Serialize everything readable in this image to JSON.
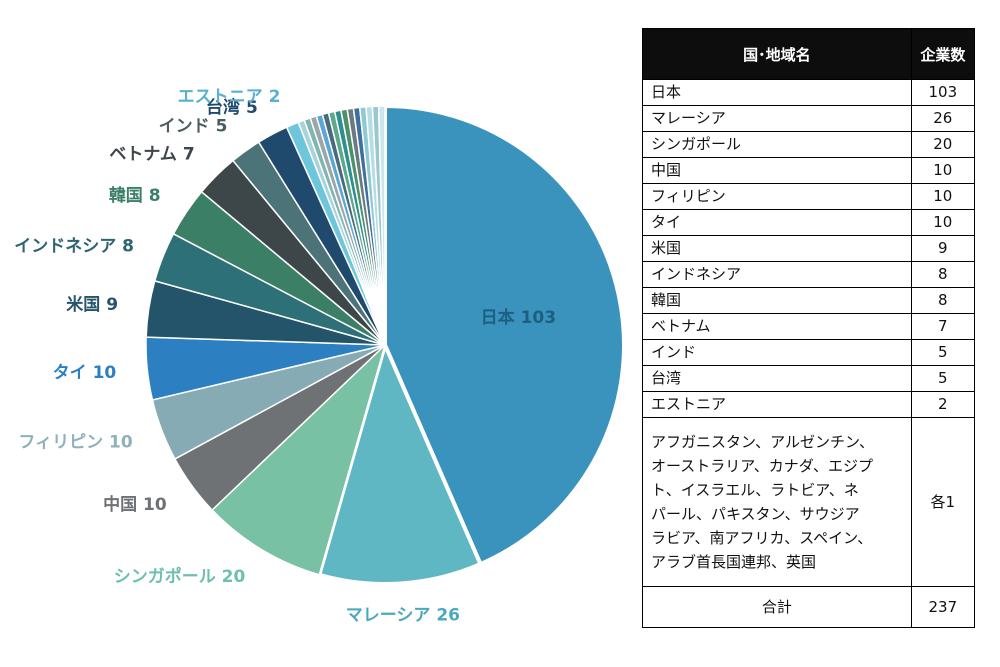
{
  "chart_data": {
    "type": "pie",
    "total": 237,
    "slices": [
      {
        "label": "日本",
        "value": 103,
        "display": "日本 103",
        "color": "#3a93bd",
        "label_color": "#1d5f82"
      },
      {
        "label": "マレーシア",
        "value": 26,
        "display": "マレーシア 26",
        "color": "#5fb7c4",
        "label_color": "#4aa8bf"
      },
      {
        "label": "シンガポール",
        "value": 20,
        "display": "シンガポール 20",
        "color": "#79c1a5",
        "label_color": "#6dbfae"
      },
      {
        "label": "中国",
        "value": 10,
        "display": "中国 10",
        "color": "#6e7274",
        "label_color": "#6e7274"
      },
      {
        "label": "フィリピン",
        "value": 10,
        "display": "フィリピン 10",
        "color": "#86abb4",
        "label_color": "#8fb1bb"
      },
      {
        "label": "タイ",
        "value": 10,
        "display": "タイ 10",
        "color": "#2c80c2",
        "label_color": "#2c80c2"
      },
      {
        "label": "米国",
        "value": 9,
        "display": "米国 9",
        "color": "#245469",
        "label_color": "#245469"
      },
      {
        "label": "インドネシア",
        "value": 8,
        "display": "インドネシア 8",
        "color": "#2d7078",
        "label_color": "#2d6470"
      },
      {
        "label": "韓国",
        "value": 8,
        "display": "韓国 8",
        "color": "#3c7f67",
        "label_color": "#3c7f67"
      },
      {
        "label": "ベトナム",
        "value": 7,
        "display": "ベトナム 7",
        "color": "#3d4648",
        "label_color": "#3d4648"
      },
      {
        "label": "インド",
        "value": 5,
        "display": "インド 5",
        "color": "#4c7378",
        "label_color": "#4c5d62"
      },
      {
        "label": "台湾",
        "value": 5,
        "display": "台湾 5",
        "color": "#1f4a6d",
        "label_color": "#1f4a6d"
      },
      {
        "label": "エストニア",
        "value": 2,
        "display": "エストニア 2",
        "color": "#6ec6dc",
        "label_color": "#5ab0cf"
      },
      {
        "label": "アフガニスタン",
        "value": 1,
        "display": "",
        "color": "#a8d3dc",
        "label_color": ""
      },
      {
        "label": "アルゼンチン",
        "value": 1,
        "display": "",
        "color": "#7fb6b0",
        "label_color": ""
      },
      {
        "label": "オーストラリア",
        "value": 1,
        "display": "",
        "color": "#9aa6aa",
        "label_color": ""
      },
      {
        "label": "カナダ",
        "value": 1,
        "display": "",
        "color": "#5aa7d6",
        "label_color": ""
      },
      {
        "label": "エジプト",
        "value": 1,
        "display": "",
        "color": "#4a6b7c",
        "label_color": ""
      },
      {
        "label": "イスラエル",
        "value": 1,
        "display": "",
        "color": "#5ca88a",
        "label_color": ""
      },
      {
        "label": "ラトビア",
        "value": 1,
        "display": "",
        "color": "#2e8f8f",
        "label_color": ""
      },
      {
        "label": "ネパール",
        "value": 1,
        "display": "",
        "color": "#4d8f6a",
        "label_color": ""
      },
      {
        "label": "パキスタン",
        "value": 1,
        "display": "",
        "color": "#6a7a80",
        "label_color": ""
      },
      {
        "label": "サウジアラビア",
        "value": 1,
        "display": "",
        "color": "#3f6f9f",
        "label_color": ""
      },
      {
        "label": "南アフリカ",
        "value": 1,
        "display": "",
        "color": "#8fc9d4",
        "label_color": ""
      },
      {
        "label": "スペイン",
        "value": 1,
        "display": "",
        "color": "#b6dde6",
        "label_color": ""
      },
      {
        "label": "アラブ首長国連邦",
        "value": 1,
        "display": "",
        "color": "#9cc7cf",
        "label_color": ""
      },
      {
        "label": "英国",
        "value": 1,
        "display": "",
        "color": "#cde6ec",
        "label_color": ""
      }
    ]
  },
  "table": {
    "header_country": "国･地域名",
    "header_count": "企業数",
    "rows": [
      {
        "country": "日本",
        "count": "103"
      },
      {
        "country": "マレーシア",
        "count": "26"
      },
      {
        "country": "シンガポール",
        "count": "20"
      },
      {
        "country": "中国",
        "count": "10"
      },
      {
        "country": "フィリピン",
        "count": "10"
      },
      {
        "country": "タイ",
        "count": "10"
      },
      {
        "country": "米国",
        "count": "9"
      },
      {
        "country": "インドネシア",
        "count": "8"
      },
      {
        "country": "韓国",
        "count": "8"
      },
      {
        "country": "ベトナム",
        "count": "7"
      },
      {
        "country": "インド",
        "count": "5"
      },
      {
        "country": "台湾",
        "count": "5"
      },
      {
        "country": "エストニア",
        "count": "2"
      }
    ],
    "others_lines": [
      "アフガニスタン、アルゼンチン、",
      "オーストラリア、カナダ、エジプ",
      "ト、イスラエル、ラトビア、ネ",
      "パール、パキスタン、サウジア",
      "ラビア、南アフリカ、スペイン、",
      "アラブ首長国連邦、英国"
    ],
    "others_count": "各1",
    "total_label": "合計",
    "total_value": "237"
  }
}
